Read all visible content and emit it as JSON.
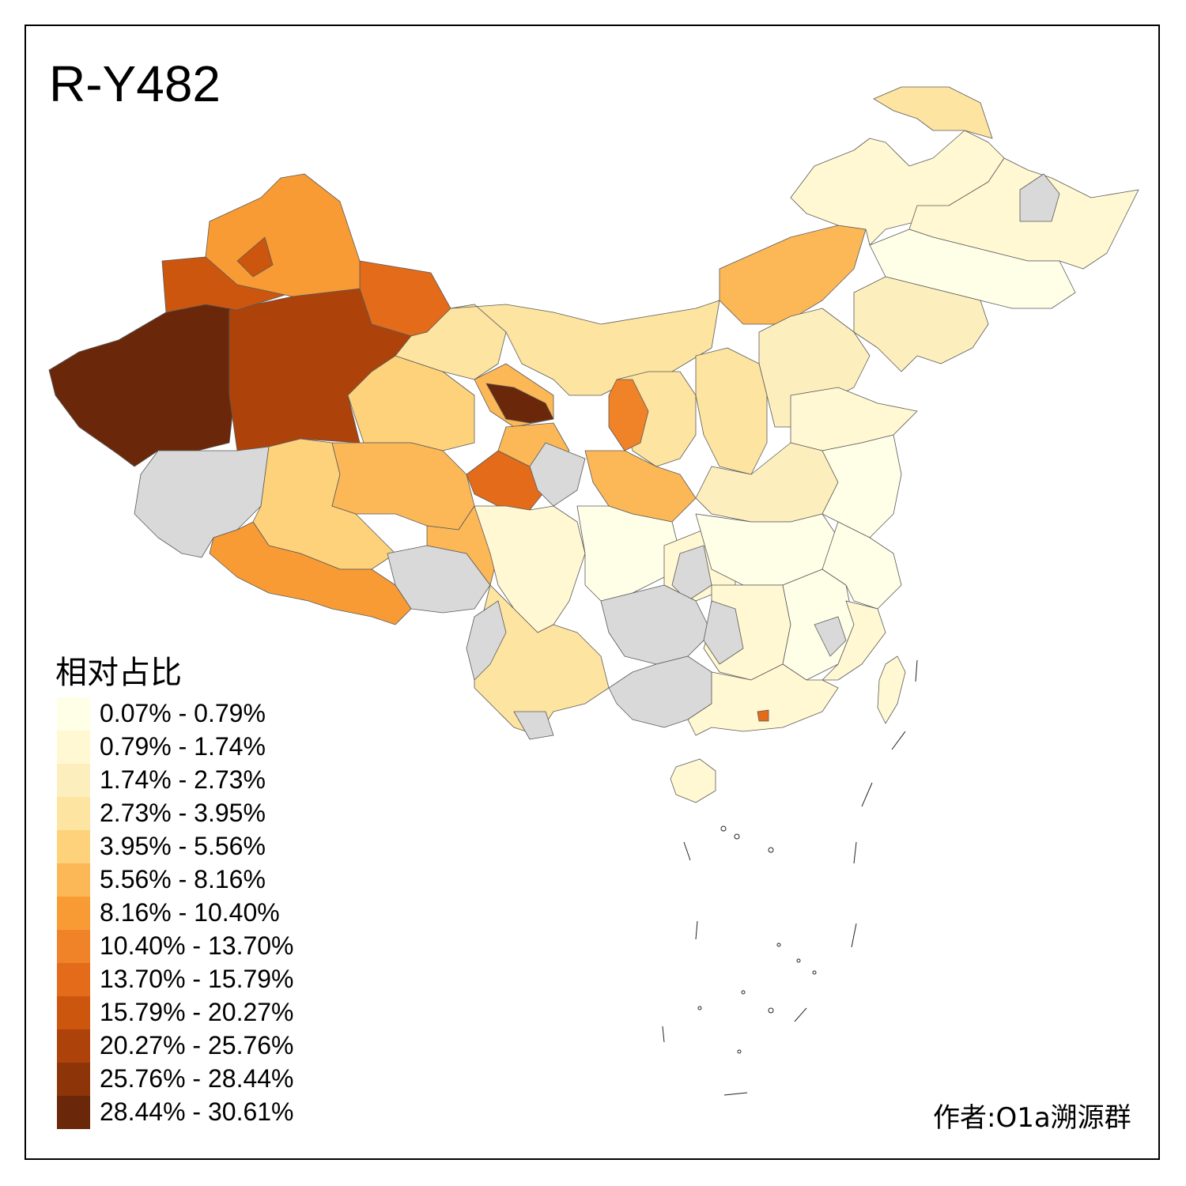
{
  "title": "R-Y482",
  "legend": {
    "title": "相对占比",
    "items": [
      {
        "label": "0.07% - 0.79%",
        "color": "#ffffe8"
      },
      {
        "label": "0.79% - 1.74%",
        "color": "#fff8d2"
      },
      {
        "label": "1.74% - 2.73%",
        "color": "#fdefbd"
      },
      {
        "label": "2.73% - 3.95%",
        "color": "#fde4a0"
      },
      {
        "label": "3.95% - 5.56%",
        "color": "#fdd27b"
      },
      {
        "label": "5.56% - 8.16%",
        "color": "#fcb857"
      },
      {
        "label": "8.16% - 10.40%",
        "color": "#f99b34"
      },
      {
        "label": "10.40% - 13.70%",
        "color": "#f08228"
      },
      {
        "label": "13.70% - 15.79%",
        "color": "#e36b19"
      },
      {
        "label": "15.79% - 20.27%",
        "color": "#cc560e"
      },
      {
        "label": "20.27% - 25.76%",
        "color": "#ad420a"
      },
      {
        "label": "25.76% - 28.44%",
        "color": "#8e3409"
      },
      {
        "label": "28.44% - 30.61%",
        "color": "#6b2709"
      }
    ]
  },
  "no_data_color": "#d9d9d9",
  "author": "作者:O1a溯源群"
}
